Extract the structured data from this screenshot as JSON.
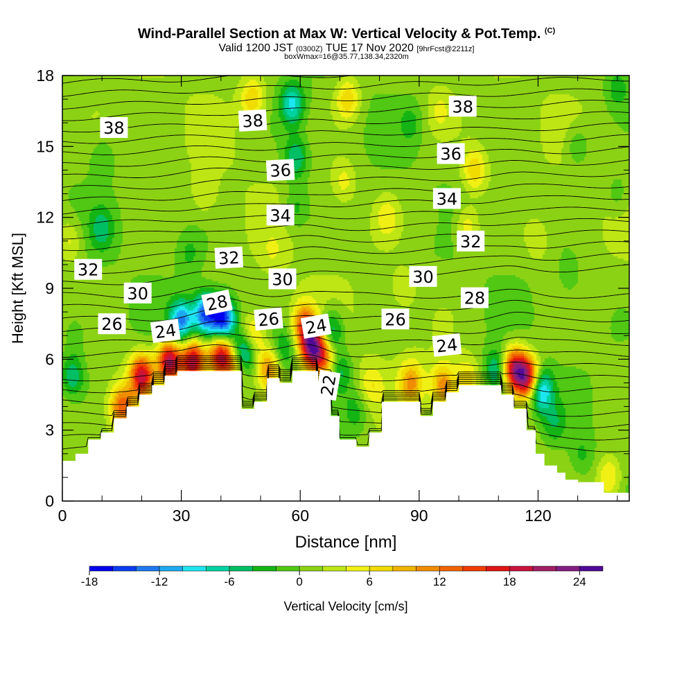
{
  "header": {
    "title": "Wind-Parallel Section at Max W: Vertical Velocity & Pot.Temp.",
    "copyright": "(C)",
    "valid_prefix": "Valid 1200 JST",
    "valid_utc": "(0300Z)",
    "valid_date": "TUE 17 Nov 2020",
    "forecast": "[9hrFcst@2211z]",
    "boxinfo": "boxWmax=16@35.77,138.34,2320m"
  },
  "colors": {
    "terrain_mask": "#ffffff",
    "contour": "#000000",
    "colorbar": [
      "#0000f0",
      "#0a3cf0",
      "#1e78f0",
      "#1eaaf0",
      "#1ee6f0",
      "#00d2a0",
      "#00be64",
      "#14b414",
      "#50c814",
      "#8cd214",
      "#bee614",
      "#f0f014",
      "#f0dc00",
      "#f0b400",
      "#f08c00",
      "#f06400",
      "#f03c00",
      "#e01414",
      "#c8143c",
      "#a01e64",
      "#821e82",
      "#500a96"
    ]
  },
  "chart_data": {
    "type": "heatmap",
    "xlabel": "Distance [nm]",
    "ylabel": "Height [Kft MSL]",
    "xlim": [
      0,
      143
    ],
    "ylim": [
      0,
      18
    ],
    "xticks": [
      0,
      30,
      60,
      90,
      120
    ],
    "yticks": [
      0,
      3,
      6,
      9,
      12,
      15,
      18
    ],
    "colorbar": {
      "label": "Vertical Velocity [cm/s]",
      "ticks": [
        -18,
        -12,
        -6,
        0,
        6,
        12,
        18,
        24
      ],
      "range": [
        -18,
        26
      ],
      "step": 2
    },
    "terrain": {
      "x": [
        0,
        3.3,
        3.3,
        6.5,
        6.5,
        9.7,
        9.7,
        13,
        13,
        16.2,
        16.2,
        19.4,
        19.4,
        22.6,
        22.6,
        25.8,
        25.8,
        29,
        29,
        32.3,
        32.3,
        45.2,
        45.2,
        45.2,
        48.4,
        48.4,
        48.4,
        48.4,
        48.4,
        51.6,
        51.6,
        54.8,
        54.8,
        54.8,
        58,
        58,
        61.3,
        61.3,
        61.3,
        64.5,
        64.5,
        67.7,
        67.7,
        69.9,
        69.9,
        74.2,
        74.2,
        77.4,
        77.4,
        80.6,
        80.6,
        83.8,
        83.8,
        90.3,
        90.3,
        93.5,
        93.5,
        96.8,
        96.8,
        100,
        100,
        103.2,
        103.2,
        110.7,
        110.7,
        113.9,
        113.9,
        117.1,
        117.1,
        119.4,
        119.4,
        121.6,
        121.6,
        124.8,
        124.8,
        126.9,
        126.9,
        130.1,
        130.1,
        136.6,
        136.6,
        143
      ],
      "y_kft": [
        1.7,
        1.7,
        2.0,
        2.0,
        2.6,
        2.6,
        2.9,
        2.9,
        3.5,
        3.5,
        4.0,
        4.0,
        4.5,
        4.5,
        4.9,
        4.9,
        5.3,
        5.3,
        5.5,
        5.5,
        5.5,
        5.5,
        5.0,
        3.9,
        3.9,
        2.9,
        4.0,
        4.6,
        4.2,
        4.2,
        5.2,
        5.2,
        4.4,
        5.0,
        5.0,
        5.5,
        5.5,
        5.5,
        5.5,
        5.5,
        5.0,
        5.0,
        3.6,
        3.6,
        2.6,
        2.6,
        2.3,
        2.3,
        2.9,
        2.9,
        4.2,
        4.2,
        4.2,
        4.2,
        3.6,
        3.6,
        4.2,
        4.2,
        4.6,
        4.6,
        4.9,
        4.9,
        4.9,
        4.9,
        4.5,
        4.5,
        3.9,
        3.9,
        3.0,
        3.0,
        2.0,
        2.0,
        1.5,
        1.5,
        1.2,
        1.2,
        0.9,
        0.9,
        0.8,
        0.8,
        0.35,
        0.35
      ]
    },
    "w_features": [
      {
        "x": 2.5,
        "y": 5.3,
        "w": -7
      },
      {
        "x": 3.5,
        "y": 7.0,
        "w": -3
      },
      {
        "x": 10,
        "y": 11.5,
        "w": -5
      },
      {
        "x": 10,
        "y": 14.5,
        "w": -3
      },
      {
        "x": 2,
        "y": 11.0,
        "w": 4
      },
      {
        "x": 20,
        "y": 5.3,
        "w": 18
      },
      {
        "x": 15,
        "y": 4.0,
        "w": 12
      },
      {
        "x": 27,
        "y": 5.9,
        "w": 20
      },
      {
        "x": 33,
        "y": 5.9,
        "w": 19
      },
      {
        "x": 40,
        "y": 6.1,
        "w": 18
      },
      {
        "x": 44,
        "y": 5.8,
        "w": 10
      },
      {
        "x": 30,
        "y": 7.6,
        "w": -13
      },
      {
        "x": 36,
        "y": 7.9,
        "w": -15
      },
      {
        "x": 40.5,
        "y": 7.7,
        "w": -18
      },
      {
        "x": 45.5,
        "y": 6.2,
        "w": -14
      },
      {
        "x": 48,
        "y": 7.0,
        "w": 7
      },
      {
        "x": 52,
        "y": 5.6,
        "w": 10
      },
      {
        "x": 56,
        "y": 6.4,
        "w": -5
      },
      {
        "x": 61,
        "y": 7.5,
        "w": 12
      },
      {
        "x": 63,
        "y": 6.5,
        "w": 20
      },
      {
        "x": 66,
        "y": 6.0,
        "w": 10
      },
      {
        "x": 68,
        "y": 7.2,
        "w": -8
      },
      {
        "x": 70,
        "y": 5.5,
        "w": -6
      },
      {
        "x": 74,
        "y": 3.8,
        "w": -4
      },
      {
        "x": 78,
        "y": 4.9,
        "w": 4
      },
      {
        "x": 88,
        "y": 5.0,
        "w": 9
      },
      {
        "x": 96,
        "y": 4.9,
        "w": 10
      },
      {
        "x": 102,
        "y": 5.1,
        "w": 6
      },
      {
        "x": 109.5,
        "y": 5.5,
        "w": -8
      },
      {
        "x": 114,
        "y": 5.6,
        "w": 18
      },
      {
        "x": 117.5,
        "y": 5.2,
        "w": 19
      },
      {
        "x": 120.5,
        "y": 4.7,
        "w": -13
      },
      {
        "x": 124,
        "y": 3.3,
        "w": -4
      },
      {
        "x": 131,
        "y": 1.9,
        "w": -3
      },
      {
        "x": 138,
        "y": 1.0,
        "w": 6
      },
      {
        "x": 58,
        "y": 16.8,
        "w": -9
      },
      {
        "x": 59,
        "y": 14.5,
        "w": -7
      },
      {
        "x": 59,
        "y": 12.4,
        "w": -4
      },
      {
        "x": 48,
        "y": 17.0,
        "w": 7
      },
      {
        "x": 72,
        "y": 17.0,
        "w": 7
      },
      {
        "x": 71,
        "y": 13.5,
        "w": 4
      },
      {
        "x": 104,
        "y": 14.0,
        "w": 7
      },
      {
        "x": 102,
        "y": 11.6,
        "w": 5
      },
      {
        "x": 95,
        "y": 16.5,
        "w": 3
      },
      {
        "x": 36,
        "y": 13.0,
        "w": 3
      },
      {
        "x": 32,
        "y": 10.5,
        "w": -3
      },
      {
        "x": 53,
        "y": 10.5,
        "w": 2
      },
      {
        "x": 82,
        "y": 12.0,
        "w": 4
      },
      {
        "x": 86,
        "y": 9.0,
        "w": 3
      },
      {
        "x": 92,
        "y": 12.0,
        "w": 2
      },
      {
        "x": 130,
        "y": 15.0,
        "w": -4
      },
      {
        "x": 140,
        "y": 13.0,
        "w": -3
      },
      {
        "x": 128,
        "y": 9.5,
        "w": -2
      },
      {
        "x": 140,
        "y": 17.5,
        "w": -4
      },
      {
        "x": 88,
        "y": 16.0,
        "w": -3
      },
      {
        "x": 120,
        "y": 11.0,
        "w": 3
      }
    ],
    "theta_labels": [
      {
        "text": "38",
        "x": 13,
        "y": 15.8,
        "rot": 0
      },
      {
        "text": "38",
        "x": 48,
        "y": 16.1,
        "rot": -3
      },
      {
        "text": "38",
        "x": 101,
        "y": 16.7,
        "rot": 0
      },
      {
        "text": "36",
        "x": 55,
        "y": 14.0,
        "rot": -3
      },
      {
        "text": "36",
        "x": 98,
        "y": 14.7,
        "rot": 0
      },
      {
        "text": "34",
        "x": 55,
        "y": 12.1,
        "rot": 0
      },
      {
        "text": "34",
        "x": 97,
        "y": 12.8,
        "rot": 0
      },
      {
        "text": "32",
        "x": 6.5,
        "y": 9.8,
        "rot": 0
      },
      {
        "text": "32",
        "x": 42,
        "y": 10.3,
        "rot": -3
      },
      {
        "text": "32",
        "x": 103,
        "y": 11.0,
        "rot": 0
      },
      {
        "text": "30",
        "x": 19,
        "y": 8.8,
        "rot": 0
      },
      {
        "text": "30",
        "x": 55.5,
        "y": 9.4,
        "rot": 0
      },
      {
        "text": "30",
        "x": 91,
        "y": 9.5,
        "rot": 0
      },
      {
        "text": "28",
        "x": 39,
        "y": 8.4,
        "rot": -12
      },
      {
        "text": "28",
        "x": 104,
        "y": 8.6,
        "rot": 0
      },
      {
        "text": "26",
        "x": 12.5,
        "y": 7.5,
        "rot": 0
      },
      {
        "text": "26",
        "x": 52,
        "y": 7.7,
        "rot": -5
      },
      {
        "text": "26",
        "x": 84,
        "y": 7.7,
        "rot": 0
      },
      {
        "text": "24",
        "x": 26,
        "y": 7.2,
        "rot": -8
      },
      {
        "text": "24",
        "x": 64,
        "y": 7.4,
        "rot": -10
      },
      {
        "text": "24",
        "x": 97,
        "y": 6.6,
        "rot": -6
      },
      {
        "text": "22",
        "x": 67,
        "y": 4.9,
        "rot": -80
      }
    ]
  }
}
